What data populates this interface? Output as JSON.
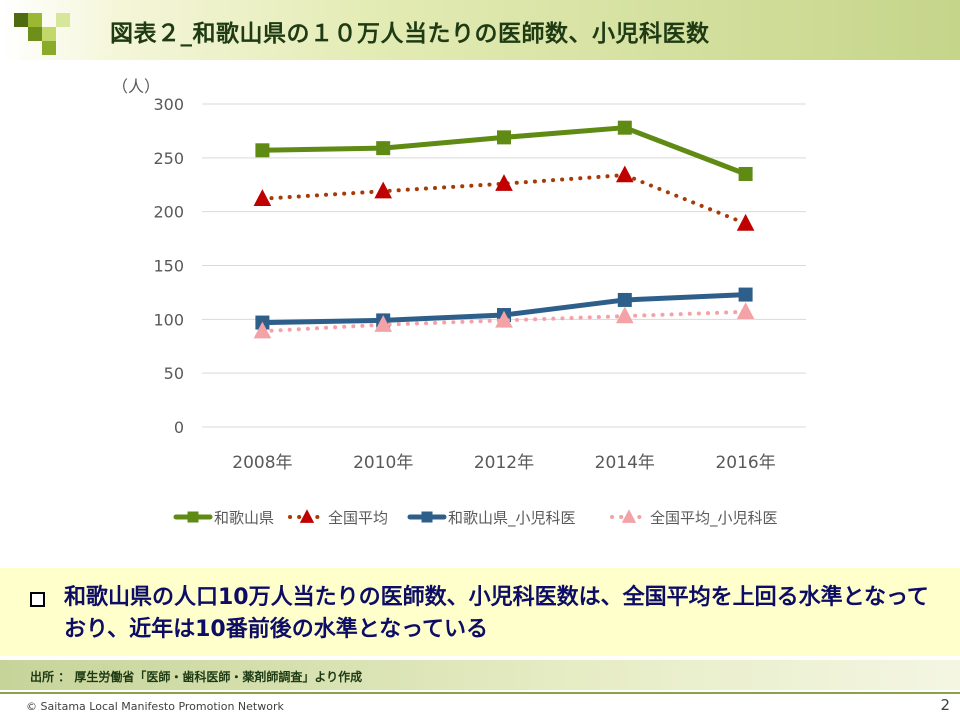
{
  "title": "図表２_和歌山県の１０万人当たりの医師数、小児科医数",
  "colors": {
    "wakayama": "#5f8b14",
    "national": "#a83a08",
    "national_marker": "#c00000",
    "wakayama_ped": "#2e5f8a",
    "national_ped": "#f3a3a8",
    "accent_green": "#6b8e23"
  },
  "chart_data": {
    "type": "line",
    "unit_label": "（人）",
    "categories": [
      "2008年",
      "2010年",
      "2012年",
      "2014年",
      "2016年"
    ],
    "ylim": [
      0,
      300
    ],
    "yticks": [
      0,
      50,
      100,
      150,
      200,
      250,
      300
    ],
    "grid": true,
    "legend_position": "bottom",
    "series": [
      {
        "name": "和歌山県",
        "values": [
          257,
          259,
          269,
          278,
          235
        ],
        "style": "solid",
        "marker": "square",
        "color": "#5f8b14"
      },
      {
        "name": "全国平均",
        "values": [
          212,
          219,
          226,
          234,
          189
        ],
        "style": "dotted",
        "marker": "triangle",
        "color": "#a83a08",
        "marker_color": "#c00000"
      },
      {
        "name": "和歌山県_小児科医",
        "values": [
          97,
          99,
          104,
          118,
          123
        ],
        "style": "solid",
        "marker": "square",
        "color": "#2e5f8a"
      },
      {
        "name": "全国平均_小児科医",
        "values": [
          89,
          95,
          99,
          103,
          107
        ],
        "style": "dotted",
        "marker": "triangle",
        "color": "#f3a3a8"
      }
    ]
  },
  "summary": {
    "bullet": "□",
    "text": "和歌山県の人口10万人当たりの医師数、小児科医数は、全国平均を上回る水準となっており、近年は10番前後の水準となっている"
  },
  "source": "出所 ： 厚生労働省「医師・歯科医師・薬剤師調査」より作成",
  "footer": {
    "copyright": "© Saitama Local Manifesto Promotion Network",
    "page_number": "2"
  }
}
